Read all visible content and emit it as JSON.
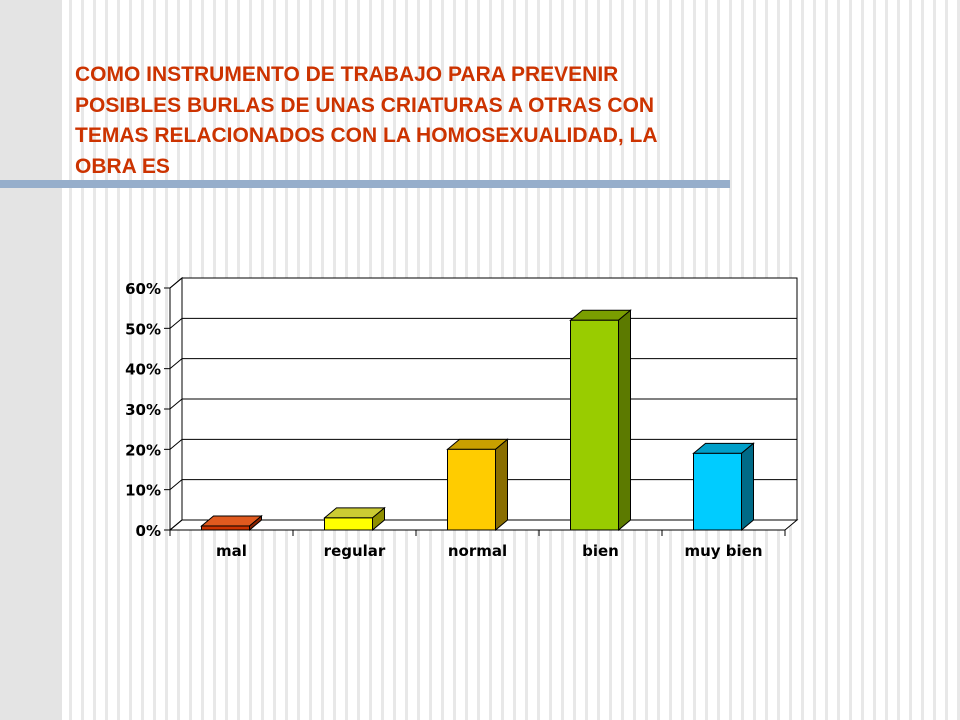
{
  "slide": {
    "title_lines": [
      "COMO INSTRUMENTO DE TRABAJO PARA PREVENIR",
      "POSIBLES BURLAS DE UNAS CRIATURAS A OTRAS CON",
      "TEMAS RELACIONADOS CON LA HOMOSEXUALIDAD, LA",
      "OBRA ES"
    ],
    "title_color": "#cc3300",
    "rule_color": "#96aecb"
  },
  "chart_data": {
    "type": "bar",
    "style": "3d-column",
    "categories": [
      "mal",
      "regular",
      "normal",
      "bien",
      "muy bien"
    ],
    "values": [
      1,
      3,
      20,
      52,
      19
    ],
    "ylim": [
      0,
      60
    ],
    "yticks": [
      0,
      10,
      20,
      30,
      40,
      50,
      60
    ],
    "ytick_labels": [
      "0%",
      "10%",
      "20%",
      "30%",
      "40%",
      "50%",
      "60%"
    ],
    "grid": true,
    "legend": "none",
    "colors": [
      {
        "front": "#cc3300",
        "top": "#e05a1f",
        "side": "#8a2200"
      },
      {
        "front": "#ffff00",
        "top": "#cccc33",
        "side": "#8f8f00"
      },
      {
        "front": "#ffcc00",
        "top": "#c9a000",
        "side": "#8a6e00"
      },
      {
        "front": "#99cc00",
        "top": "#7a9e00",
        "side": "#5c7a00"
      },
      {
        "front": "#00ccff",
        "top": "#009fc9",
        "side": "#006a87"
      }
    ]
  }
}
